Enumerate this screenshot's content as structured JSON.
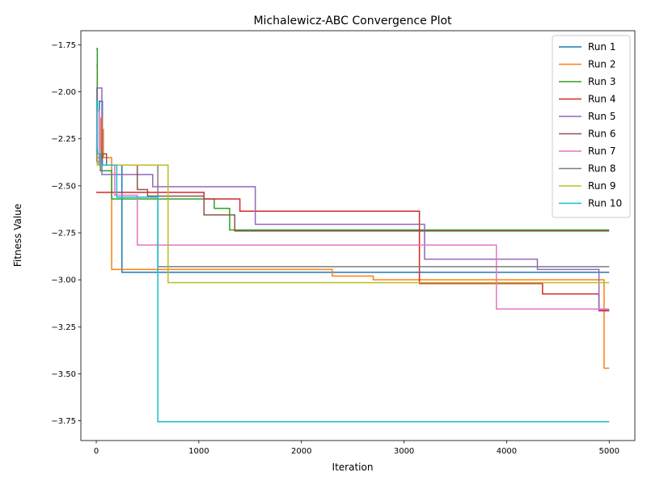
{
  "chart_data": {
    "type": "line",
    "title": "Michalewicz-ABC Convergence Plot",
    "xlabel": "Iteration",
    "ylabel": "Fitness Value",
    "xlim": [
      -150,
      5250
    ],
    "ylim": [
      -3.855,
      -1.675
    ],
    "xticks": [
      0,
      1000,
      2000,
      3000,
      4000,
      5000
    ],
    "xtick_labels": [
      "0",
      "1000",
      "2000",
      "3000",
      "4000",
      "5000"
    ],
    "yticks": [
      -3.75,
      -3.5,
      -3.25,
      -3.0,
      -2.75,
      -2.5,
      -2.25,
      -2.0,
      -1.75
    ],
    "ytick_labels": [
      "−3.75",
      "−3.50",
      "−3.25",
      "−3.00",
      "−2.75",
      "−2.50",
      "−2.25",
      "−2.00",
      "−1.75"
    ],
    "grid": false,
    "legend_position": "top-right",
    "series": [
      {
        "name": "Run 1",
        "color": "#1f77b4",
        "step": true,
        "x": [
          0,
          5,
          30,
          60,
          250,
          5000
        ],
        "y": [
          -2.25,
          -2.37,
          -2.05,
          -2.39,
          -2.96,
          -2.96
        ]
      },
      {
        "name": "Run 2",
        "color": "#ff7f0e",
        "step": true,
        "x": [
          0,
          10,
          45,
          60,
          70,
          150,
          2300,
          2700,
          4950,
          5000
        ],
        "y": [
          -1.86,
          -2.38,
          -2.14,
          -2.2,
          -2.35,
          -2.945,
          -2.98,
          -3.0,
          -3.47,
          -3.47
        ]
      },
      {
        "name": "Run 3",
        "color": "#2ca02c",
        "step": true,
        "x": [
          0,
          10,
          40,
          150,
          1150,
          1300,
          5000
        ],
        "y": [
          -1.77,
          -2.33,
          -2.42,
          -2.57,
          -2.62,
          -2.735,
          -2.735
        ]
      },
      {
        "name": "Run 4",
        "color": "#d62728",
        "step": true,
        "x": [
          0,
          1050,
          1400,
          3150,
          4350,
          4900,
          5000
        ],
        "y": [
          -2.535,
          -2.57,
          -2.635,
          -3.02,
          -3.075,
          -3.165,
          -3.165
        ]
      },
      {
        "name": "Run 5",
        "color": "#9467bd",
        "step": true,
        "x": [
          0,
          5,
          55,
          550,
          1550,
          3200,
          4300,
          4900,
          5000
        ],
        "y": [
          -2.1,
          -1.98,
          -2.44,
          -2.505,
          -2.705,
          -2.89,
          -2.945,
          -3.16,
          -3.16
        ]
      },
      {
        "name": "Run 6",
        "color": "#8c564b",
        "step": true,
        "x": [
          0,
          10,
          60,
          100,
          400,
          500,
          1050,
          1350,
          5000
        ],
        "y": [
          -2.1,
          -2.35,
          -2.33,
          -2.39,
          -2.52,
          -2.555,
          -2.655,
          -2.74,
          -2.74
        ]
      },
      {
        "name": "Run 7",
        "color": "#e377c2",
        "step": true,
        "x": [
          0,
          10,
          30,
          180,
          400,
          3900,
          5000
        ],
        "y": [
          -2.3,
          -2.1,
          -2.39,
          -2.55,
          -2.815,
          -3.155,
          -3.155
        ]
      },
      {
        "name": "Run 8",
        "color": "#7f7f7f",
        "step": true,
        "x": [
          0,
          10,
          600,
          4300,
          5000
        ],
        "y": [
          -2.35,
          -2.39,
          -2.93,
          -2.93,
          -2.93
        ]
      },
      {
        "name": "Run 9",
        "color": "#bcbd22",
        "step": true,
        "x": [
          0,
          10,
          700,
          5000
        ],
        "y": [
          -2.33,
          -2.39,
          -3.015,
          -3.015
        ]
      },
      {
        "name": "Run 10",
        "color": "#17becf",
        "step": true,
        "x": [
          0,
          5,
          40,
          200,
          600,
          5000
        ],
        "y": [
          -2.05,
          -2.33,
          -2.39,
          -2.56,
          -3.755,
          -3.755
        ]
      }
    ]
  }
}
